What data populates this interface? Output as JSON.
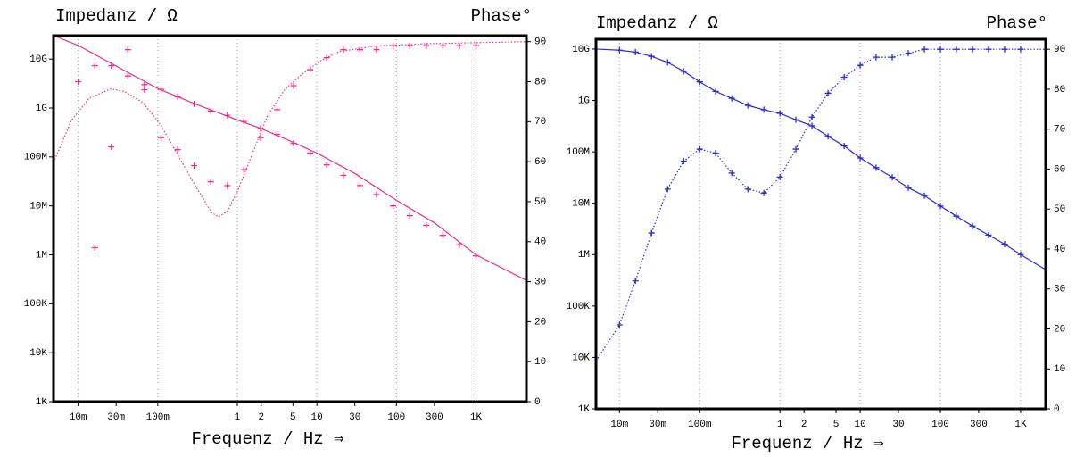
{
  "chart_data": [
    {
      "type": "line",
      "ylabel": "Impedanz / Ω",
      "y2label": "Phase°",
      "xlabel": "Frequenz / Hz ⇒",
      "log_x": true,
      "log_y": true,
      "grid": true,
      "xlim": [
        0.0049,
        4300
      ],
      "ylim": [
        1000,
        30000000000.0
      ],
      "y2lim": [
        0,
        91.5
      ],
      "xticks": [
        {
          "value": 0.01,
          "label": "10m"
        },
        {
          "value": 0.03,
          "label": "30m"
        },
        {
          "value": 0.1,
          "label": "100m"
        },
        1,
        2,
        5,
        10,
        30,
        100,
        300,
        {
          "value": 1000,
          "label": "1K"
        }
      ],
      "yticks": [
        {
          "value": 1000,
          "label": "1K"
        },
        {
          "value": 10000,
          "label": "10K"
        },
        {
          "value": 100000,
          "label": "100K"
        },
        {
          "value": 1000000,
          "label": "1M"
        },
        {
          "value": 10000000,
          "label": "10M"
        },
        {
          "value": 100000000,
          "label": "100M"
        },
        {
          "value": 1000000000,
          "label": "1G"
        },
        {
          "value": 10000000000,
          "label": "10G"
        }
      ],
      "y2ticks": [
        0,
        10,
        20,
        30,
        40,
        50,
        60,
        70,
        80,
        90
      ],
      "x": [
        0.01,
        0.0162,
        0.0261,
        0.0422,
        0.0681,
        0.11,
        0.178,
        0.287,
        0.464,
        0.75,
        1.21,
        1.96,
        3.16,
        5.11,
        8.25,
        13.3,
        21.5,
        34.8,
        56.2,
        90.9,
        147,
        237,
        383,
        619,
        1000
      ],
      "series": [
        {
          "color": "#e8308a",
          "style": "solid",
          "x": [
            0.0049,
            0.01,
            0.03,
            0.1,
            0.3,
            1,
            2,
            5,
            10,
            30,
            100,
            300,
            1000,
            4300
          ],
          "values": [
            30000000000.0,
            19000000000.0,
            7200000000.0,
            2500000000.0,
            1200000000.0,
            570000000.0,
            380000000.0,
            200000000.0,
            120000000.0,
            46000000.0,
            13000000.0,
            4500000.0,
            1000000.0,
            300000.0
          ]
        },
        {
          "color": "#e8308a",
          "style": "dotted",
          "axis": "y2",
          "x": [
            0.0049,
            0.0082,
            0.0138,
            0.0257,
            0.0387,
            0.065,
            0.109,
            0.182,
            0.305,
            0.473,
            0.58,
            0.75,
            1,
            1.43,
            2.4,
            4,
            6.8,
            11.3,
            19,
            53,
            250,
            4300
          ],
          "values": [
            59.8,
            70.3,
            75.9,
            78.2,
            77.5,
            74.8,
            69.2,
            61.4,
            53.6,
            47.3,
            46.2,
            47.6,
            52.5,
            60.3,
            71.5,
            78.2,
            82.2,
            85.3,
            87.5,
            88.9,
            89.5,
            90
          ]
        },
        {
          "color": "#e8308a",
          "style": "markers",
          "values": [
            null,
            1400000.0,
            160000000.0,
            4500000000.0,
            3000000000.0,
            2400000000.0,
            1700000000.0,
            1200000000.0,
            870000000.0,
            710000000.0,
            530000000.0,
            380000000.0,
            290000000.0,
            190000000.0,
            120000000.0,
            69000000.0,
            42000000.0,
            26000000.0,
            17000000.0,
            10000000.0,
            6300000.0,
            4000000.0,
            2500000.0,
            1600000.0,
            950000.0
          ]
        },
        {
          "color": "#e8308a",
          "style": "markers",
          "axis": "y2",
          "values": [
            80,
            84,
            84,
            88,
            78,
            66,
            63,
            59,
            55,
            54,
            58,
            66,
            73,
            79,
            83,
            86,
            88,
            88,
            88,
            89,
            89,
            89,
            89,
            89,
            89
          ]
        }
      ]
    },
    {
      "type": "line",
      "ylabel": "Impedanz / Ω",
      "y2label": "Phase°",
      "xlabel": "Frequenz / Hz ⇒",
      "log_x": true,
      "log_y": true,
      "grid": true,
      "xlim": [
        0.0051,
        2050
      ],
      "ylim": [
        1000,
        15500000000.0
      ],
      "y2lim": [
        0,
        92.5
      ],
      "xticks": [
        {
          "value": 0.01,
          "label": "10m"
        },
        {
          "value": 0.03,
          "label": "30m"
        },
        {
          "value": 0.1,
          "label": "100m"
        },
        1,
        2,
        5,
        10,
        30,
        100,
        300,
        {
          "value": 1000,
          "label": "1K"
        }
      ],
      "yticks": [
        {
          "value": 1000,
          "label": "1K"
        },
        {
          "value": 10000,
          "label": "10K"
        },
        {
          "value": 100000,
          "label": "100K"
        },
        {
          "value": 1000000,
          "label": "1M"
        },
        {
          "value": 10000000,
          "label": "10M"
        },
        {
          "value": 100000000,
          "label": "100M"
        },
        {
          "value": 1000000000,
          "label": "1G"
        },
        {
          "value": 10000000000,
          "label": "10G"
        }
      ],
      "y2ticks": [
        0,
        10,
        20,
        30,
        40,
        50,
        60,
        70,
        80,
        90
      ],
      "x": [
        0.01,
        0.0158,
        0.0251,
        0.0398,
        0.0631,
        0.1,
        0.158,
        0.251,
        0.398,
        0.631,
        1,
        1.58,
        2.51,
        3.98,
        6.31,
        10,
        15.8,
        25.1,
        39.8,
        63.1,
        100,
        158,
        251,
        398,
        631,
        1000
      ],
      "series": [
        {
          "color": "#2a2ad0",
          "style": "solid",
          "x": [
            0.0051,
            0.01,
            0.0158,
            0.0251,
            0.0398,
            0.0631,
            0.1,
            0.158,
            0.251,
            0.398,
            0.631,
            1,
            1.58,
            2.51,
            3.98,
            6.31,
            10,
            15.8,
            25.1,
            39.8,
            63.1,
            100,
            158,
            251,
            398,
            631,
            1000,
            2050
          ],
          "values": [
            10000000000.0,
            9500000000.0,
            8700000000.0,
            7200000000.0,
            5500000000.0,
            3700000000.0,
            2300000000.0,
            1500000000.0,
            1100000000.0,
            800000000.0,
            660000000.0,
            560000000.0,
            420000000.0,
            320000000.0,
            200000000.0,
            130000000.0,
            76000000.0,
            49000000.0,
            32000000.0,
            20000000.0,
            14000000.0,
            8800000.0,
            5600000.0,
            3600000.0,
            2400000.0,
            1600000.0,
            1000000.0,
            510000.0
          ]
        },
        {
          "color": "#2a2ad0",
          "style": "dotted",
          "axis": "y2",
          "x": [
            0.0051,
            0.01,
            0.0158,
            0.0251,
            0.0398,
            0.0631,
            0.1,
            0.158,
            0.251,
            0.398,
            0.631,
            1,
            1.58,
            2.51,
            3.98,
            6.31,
            10,
            15.8,
            25.1,
            39.8,
            63.1,
            100,
            158,
            251,
            398,
            631,
            1000,
            2050
          ],
          "values": [
            12,
            21,
            32,
            44,
            55,
            62,
            65,
            64,
            59,
            55,
            54,
            58,
            65,
            73,
            79,
            83,
            86,
            88,
            88,
            89,
            90,
            90,
            90,
            90,
            90,
            90,
            90,
            90
          ]
        },
        {
          "color": "#2a2ad0",
          "style": "markers",
          "values": [
            9500000000.0,
            8700000000.0,
            7200000000.0,
            5500000000.0,
            3700000000.0,
            2300000000.0,
            1500000000.0,
            1100000000.0,
            800000000.0,
            660000000.0,
            560000000.0,
            420000000.0,
            320000000.0,
            200000000.0,
            130000000.0,
            76000000.0,
            49000000.0,
            32000000.0,
            20000000.0,
            14000000.0,
            8800000.0,
            5600000.0,
            3600000.0,
            2400000.0,
            1600000.0,
            1000000.0
          ]
        },
        {
          "color": "#2a2ad0",
          "style": "markers",
          "axis": "y2",
          "values": [
            21,
            32,
            44,
            55,
            62,
            65,
            64,
            59,
            55,
            54,
            58,
            65,
            73,
            79,
            83,
            86,
            88,
            88,
            89,
            90,
            90,
            90,
            90,
            90,
            90,
            90
          ]
        }
      ]
    }
  ]
}
